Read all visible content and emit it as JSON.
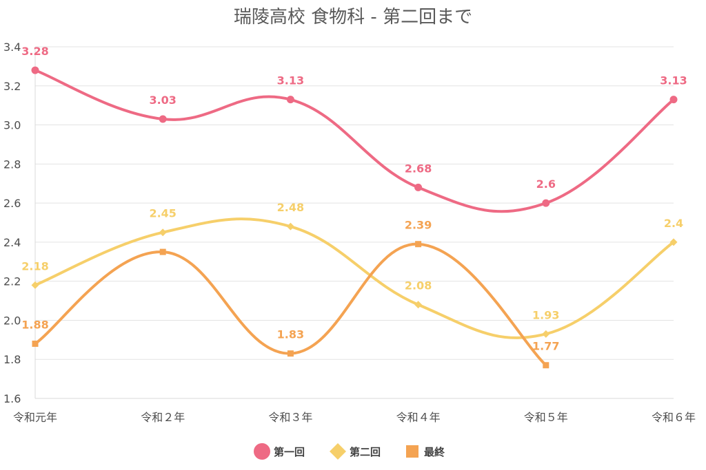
{
  "chart_data": {
    "type": "line",
    "title": "瑞陵高校 食物科 - 第二回まで",
    "categories": [
      "令和元年",
      "令和２年",
      "令和３年",
      "令和４年",
      "令和５年",
      "令和６年"
    ],
    "ylim": [
      1.6,
      3.4
    ],
    "yticks": [
      "1.6",
      "1.8",
      "2.0",
      "2.2",
      "2.4",
      "2.6",
      "2.8",
      "3.0",
      "3.2",
      "3.4"
    ],
    "grid": true,
    "legend_position": "bottom",
    "series": [
      {
        "name": "第一回",
        "color": "#ee6a84",
        "marker": "circle",
        "values": [
          3.28,
          3.03,
          3.13,
          2.68,
          2.6,
          3.13
        ],
        "labels": [
          "3.28",
          "3.03",
          "3.13",
          "2.68",
          "2.6",
          "3.13"
        ]
      },
      {
        "name": "第二回",
        "color": "#f6cf6a",
        "marker": "diamond",
        "values": [
          2.18,
          2.45,
          2.48,
          2.08,
          1.93,
          2.4
        ],
        "labels": [
          "2.18",
          "2.45",
          "2.48",
          "2.08",
          "1.93",
          "2.4"
        ]
      },
      {
        "name": "最終",
        "color": "#f4a352",
        "marker": "square",
        "values": [
          1.88,
          2.35,
          1.83,
          2.39,
          1.77,
          null
        ],
        "labels": [
          "1.88",
          "",
          "1.83",
          "2.39",
          "1.77",
          ""
        ]
      }
    ]
  }
}
